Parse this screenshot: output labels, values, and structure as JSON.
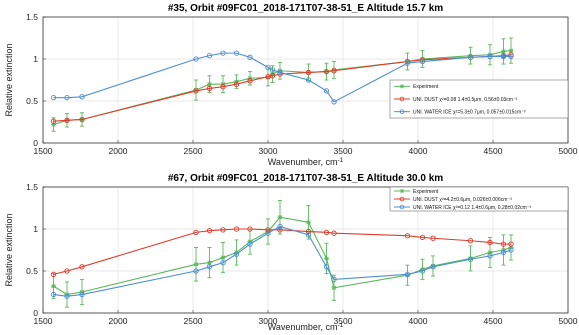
{
  "chart_data": [
    {
      "type": "line",
      "title": "#35, Orbit #09FC01_2018-171T07-38-51_E Altitude 15.7 km",
      "xlabel": "Wavenumber, cm",
      "xlabel_sup": "-1",
      "ylabel": "Relative extinction",
      "xlim": [
        1500,
        5000
      ],
      "ylim": [
        0,
        1.5
      ],
      "xticks": [
        "1500",
        "2000",
        "2500",
        "3000",
        "3500",
        "4000",
        "4500",
        "5000"
      ],
      "yticks": [
        "0",
        "0.5",
        "1",
        "1.5"
      ],
      "grid": true,
      "legend_position": "lower-right",
      "series": [
        {
          "name": "Experiment",
          "color": "#5cb85c",
          "marker": "star",
          "x": [
            1570,
            1660,
            1760,
            2520,
            2610,
            2700,
            2790,
            2880,
            3000,
            3030,
            3080,
            3270,
            3390,
            3440,
            3930,
            4030,
            4350,
            4480,
            4570,
            4620
          ],
          "y": [
            0.22,
            0.27,
            0.28,
            0.63,
            0.7,
            0.7,
            0.73,
            0.77,
            0.78,
            0.82,
            0.86,
            0.84,
            0.85,
            0.87,
            0.97,
            1.0,
            1.04,
            1.05,
            1.09,
            1.1
          ],
          "err": [
            0.08,
            0.08,
            0.08,
            0.12,
            0.1,
            0.1,
            0.08,
            0.08,
            0.1,
            0.1,
            0.1,
            0.1,
            0.1,
            0.1,
            0.1,
            0.1,
            0.1,
            0.12,
            0.15,
            0.15
          ]
        },
        {
          "name": "UNI. DUST χ²=0.08 1.4±0.5μm, 0.56±0.03cm⁻³",
          "color": "#e03b2c",
          "marker": "circle",
          "x": [
            1570,
            1660,
            1760,
            2520,
            2610,
            2700,
            2790,
            2880,
            3000,
            3030,
            3080,
            3270,
            3390,
            3440,
            3930,
            4030,
            4350,
            4480,
            4570,
            4620
          ],
          "y": [
            0.26,
            0.27,
            0.28,
            0.62,
            0.65,
            0.67,
            0.7,
            0.74,
            0.79,
            0.8,
            0.82,
            0.84,
            0.85,
            0.86,
            0.97,
            0.99,
            1.02,
            1.03,
            1.04,
            1.05
          ]
        },
        {
          "name": "UNI. WATER ICE χ²=5.3±0.7μm, 0.057±0.015cm⁻³",
          "color": "#4d8fd1",
          "marker": "circle",
          "x": [
            1570,
            1660,
            1760,
            2520,
            2610,
            2700,
            2790,
            2880,
            3000,
            3030,
            3080,
            3270,
            3390,
            3440,
            3930,
            4030,
            4350,
            4480,
            4570,
            4620
          ],
          "y": [
            0.54,
            0.54,
            0.55,
            1.0,
            1.04,
            1.07,
            1.07,
            1.02,
            0.9,
            0.87,
            0.84,
            0.75,
            0.62,
            0.49,
            0.95,
            0.97,
            1.02,
            1.03,
            1.03,
            1.03
          ]
        }
      ]
    },
    {
      "type": "line",
      "title": "#67, Orbit #09FC01_2018-171T07-38-51_E Altitude 30.0 km",
      "xlabel": "Wavenumber, cm",
      "xlabel_sup": "-1",
      "ylabel": "Relative extinction",
      "xlim": [
        1500,
        5000
      ],
      "ylim": [
        0,
        1.5
      ],
      "xticks": [
        "1500",
        "2000",
        "2500",
        "3000",
        "3500",
        "4000",
        "4500",
        "5000"
      ],
      "yticks": [
        "0",
        "0.5",
        "1",
        "1.5"
      ],
      "grid": true,
      "legend_position": "top-right",
      "series": [
        {
          "name": "Experiment",
          "color": "#5cb85c",
          "marker": "star",
          "x": [
            1570,
            1660,
            1760,
            2520,
            2610,
            2700,
            2790,
            2880,
            3000,
            3080,
            3270,
            3390,
            3440,
            3930,
            4030,
            4100,
            4350,
            4480,
            4570,
            4620
          ],
          "y": [
            0.32,
            0.22,
            0.25,
            0.58,
            0.6,
            0.66,
            0.72,
            0.85,
            0.97,
            1.14,
            1.08,
            0.65,
            0.3,
            0.45,
            0.52,
            0.56,
            0.65,
            0.72,
            0.75,
            0.78
          ],
          "err": [
            0.15,
            0.15,
            0.15,
            0.2,
            0.18,
            0.18,
            0.15,
            0.15,
            0.15,
            0.2,
            0.2,
            0.18,
            0.15,
            0.12,
            0.12,
            0.12,
            0.15,
            0.18,
            0.18,
            0.15
          ]
        },
        {
          "name": "UNI. DUST χ²=4.2±0.6μm, 0.026±0.006cm⁻³",
          "color": "#e03b2c",
          "marker": "circle",
          "x": [
            1570,
            1660,
            1760,
            2520,
            2610,
            2700,
            2790,
            2880,
            3000,
            3080,
            3270,
            3390,
            3440,
            3930,
            4030,
            4100,
            4350,
            4480,
            4570,
            4620
          ],
          "y": [
            0.46,
            0.5,
            0.55,
            0.96,
            0.98,
            0.99,
            1.0,
            1.0,
            0.99,
            0.99,
            0.97,
            0.96,
            0.95,
            0.92,
            0.9,
            0.89,
            0.86,
            0.84,
            0.82,
            0.82
          ]
        },
        {
          "name": "UNI. WATER ICE χ²=0.12 1.4±0.6μm, 0.28±0.02cm⁻³",
          "color": "#4d8fd1",
          "marker": "circle",
          "x": [
            1570,
            1660,
            1760,
            2520,
            2610,
            2700,
            2790,
            2880,
            3000,
            3080,
            3270,
            3390,
            3440,
            3930,
            4030,
            4100,
            4350,
            4480,
            4570,
            4620
          ],
          "y": [
            0.22,
            0.2,
            0.22,
            0.5,
            0.55,
            0.6,
            0.7,
            0.82,
            0.95,
            1.03,
            0.93,
            0.55,
            0.4,
            0.46,
            0.5,
            0.55,
            0.64,
            0.68,
            0.72,
            0.75
          ]
        }
      ]
    }
  ]
}
